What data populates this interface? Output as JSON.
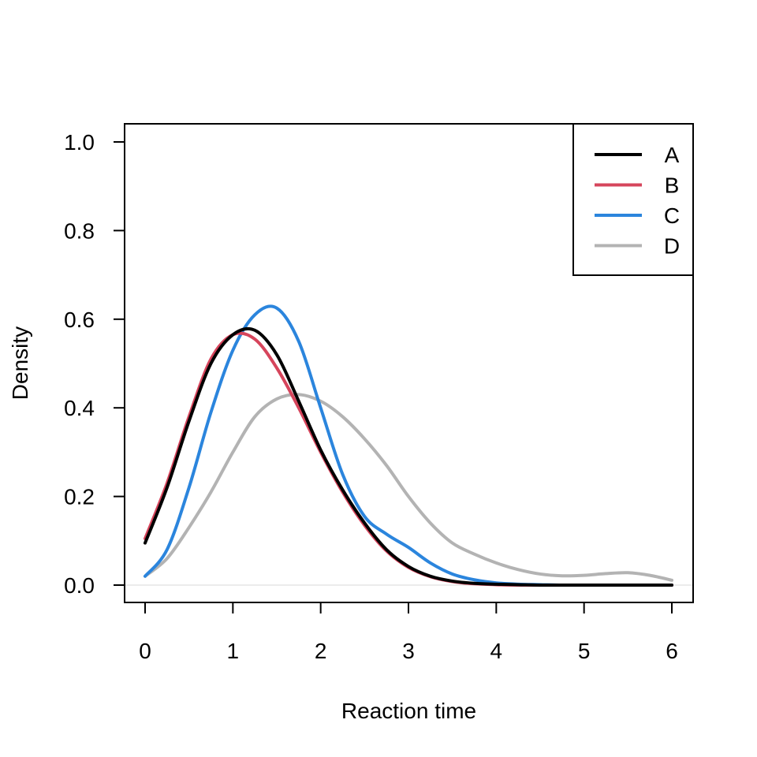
{
  "chart_data": {
    "type": "line",
    "title": "",
    "xlabel": "Reaction time",
    "ylabel": "Density",
    "xlim": [
      0,
      6
    ],
    "ylim": [
      0,
      1
    ],
    "xticks": [
      0,
      1,
      2,
      3,
      4,
      5,
      6
    ],
    "yticks": [
      0.0,
      0.2,
      0.4,
      0.6,
      0.8,
      1.0
    ],
    "xtick_labels": [
      "0",
      "1",
      "2",
      "3",
      "4",
      "5",
      "6"
    ],
    "ytick_labels": [
      "0.0",
      "0.2",
      "0.4",
      "0.6",
      "0.8",
      "1.0"
    ],
    "grid": false,
    "zero_line": true,
    "legend_position": "top-right",
    "x": [
      0,
      0.25,
      0.5,
      0.75,
      1.0,
      1.25,
      1.5,
      1.75,
      2.0,
      2.25,
      2.5,
      2.75,
      3.0,
      3.25,
      3.5,
      3.75,
      4.0,
      4.25,
      4.5,
      4.75,
      5.0,
      5.25,
      5.5,
      5.75,
      6.0
    ],
    "series": [
      {
        "name": "A",
        "color": "#000000",
        "values": [
          0.095,
          0.22,
          0.37,
          0.5,
          0.565,
          0.575,
          0.52,
          0.415,
          0.305,
          0.215,
          0.14,
          0.08,
          0.042,
          0.02,
          0.009,
          0.004,
          0.002,
          0.001,
          0.0,
          0.0,
          0.0,
          0.0,
          0.0,
          0.0,
          0.0
        ]
      },
      {
        "name": "B",
        "color": "#d6455c",
        "values": [
          0.105,
          0.23,
          0.38,
          0.51,
          0.565,
          0.555,
          0.49,
          0.4,
          0.3,
          0.21,
          0.135,
          0.077,
          0.04,
          0.019,
          0.008,
          0.003,
          0.001,
          0.0,
          0.0,
          0.0,
          0.0,
          0.0,
          0.0,
          0.0,
          0.0
        ]
      },
      {
        "name": "C",
        "color": "#2b85dd",
        "values": [
          0.02,
          0.08,
          0.22,
          0.39,
          0.53,
          0.61,
          0.625,
          0.55,
          0.4,
          0.25,
          0.155,
          0.115,
          0.085,
          0.05,
          0.025,
          0.012,
          0.005,
          0.002,
          0.001,
          0.0,
          0.0,
          0.0,
          0.0,
          0.0,
          0.0
        ]
      },
      {
        "name": "D",
        "color": "#b3b3b3",
        "values": [
          0.02,
          0.06,
          0.13,
          0.21,
          0.3,
          0.38,
          0.42,
          0.43,
          0.415,
          0.38,
          0.33,
          0.27,
          0.2,
          0.14,
          0.095,
          0.07,
          0.05,
          0.035,
          0.025,
          0.021,
          0.022,
          0.026,
          0.028,
          0.022,
          0.011
        ]
      }
    ]
  }
}
